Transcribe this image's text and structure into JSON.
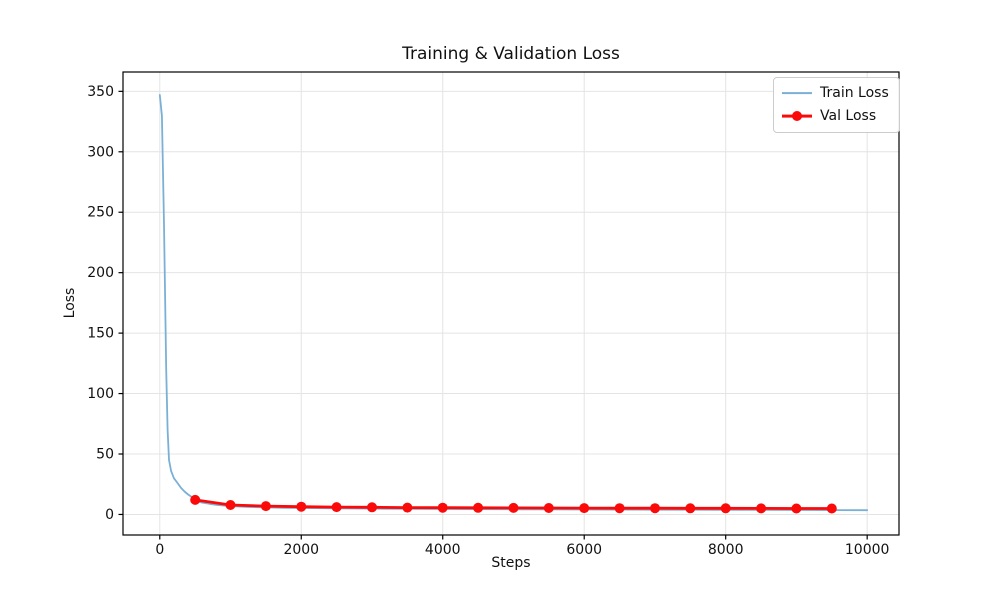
{
  "figure": {
    "background": "#ffffff"
  },
  "chart_data": {
    "type": "line",
    "title": "Training & Validation Loss",
    "xlabel": "Steps",
    "ylabel": "Loss",
    "xlim": [
      -520,
      10450
    ],
    "ylim": [
      -17,
      366
    ],
    "xticks": [
      0,
      2000,
      4000,
      6000,
      8000,
      10000
    ],
    "yticks": [
      0,
      50,
      100,
      150,
      200,
      250,
      300,
      350
    ],
    "grid": true,
    "grid_color": "#e4e4e4",
    "spine_color": "#000000",
    "tick_label_color": "#111111",
    "legend_position": "upper right",
    "series": [
      {
        "name": "Train Loss",
        "color": "#7ab0d6",
        "linewidth": 1.8,
        "marker": null,
        "x": [
          0,
          30,
          60,
          90,
          110,
          130,
          160,
          200,
          250,
          300,
          350,
          400,
          450,
          500,
          600,
          700,
          800,
          900,
          1000,
          1250,
          1500,
          1750,
          2000,
          2500,
          3000,
          3500,
          4000,
          4500,
          5000,
          5500,
          6000,
          6500,
          7000,
          7500,
          8000,
          8500,
          9000,
          9500,
          10000
        ],
        "y": [
          347,
          330,
          240,
          120,
          70,
          45,
          36,
          30,
          26,
          22,
          19,
          16.5,
          14.5,
          11.2,
          9.8,
          8.8,
          8.0,
          7.4,
          6.9,
          6.2,
          5.8,
          5.5,
          5.3,
          5.0,
          4.8,
          4.6,
          4.5,
          4.4,
          4.3,
          4.2,
          4.1,
          4.0,
          3.95,
          3.9,
          3.85,
          3.8,
          3.7,
          3.6,
          3.5
        ]
      },
      {
        "name": "Val Loss",
        "color": "#fb0a0a",
        "linewidth": 2.8,
        "marker": "o",
        "markersize": 10,
        "x": [
          500,
          1000,
          1500,
          2000,
          2500,
          3000,
          3500,
          4000,
          4500,
          5000,
          5500,
          6000,
          6500,
          7000,
          7500,
          8000,
          8500,
          9000,
          9500
        ],
        "y": [
          12.0,
          7.8,
          6.9,
          6.4,
          6.1,
          5.9,
          5.7,
          5.6,
          5.5,
          5.4,
          5.3,
          5.25,
          5.2,
          5.15,
          5.1,
          5.05,
          5.0,
          4.95,
          4.9
        ]
      }
    ]
  }
}
